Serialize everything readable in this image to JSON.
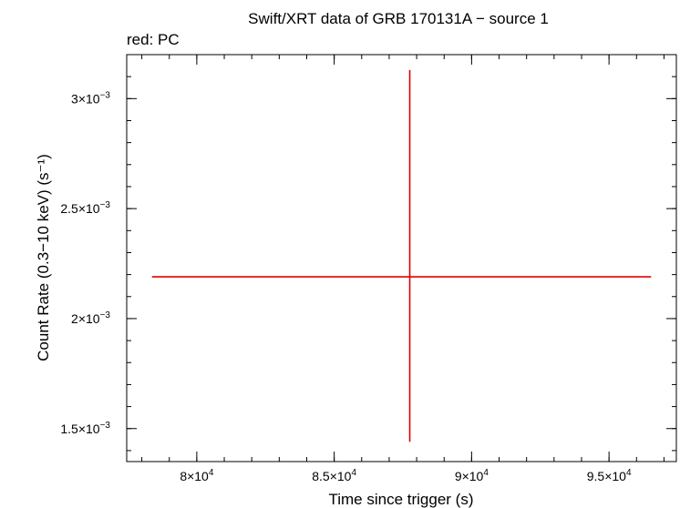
{
  "chart_data": {
    "type": "scatter",
    "title": "Swift/XRT data of GRB 170131A − source 1",
    "subtitle": "red: PC",
    "xlabel": "Time since trigger (s)",
    "ylabel": "Count Rate (0.3−10 keV) (s⁻¹)",
    "x_scale": "linear",
    "y_scale": "linear",
    "xlim": [
      77450,
      97450
    ],
    "ylim": [
      0.00135,
      0.0032
    ],
    "x_ticks": [
      {
        "value": 80000,
        "mantissa": "8",
        "exponent": "4"
      },
      {
        "value": 85000,
        "mantissa": "8.5",
        "exponent": "4"
      },
      {
        "value": 90000,
        "mantissa": "9",
        "exponent": "4"
      },
      {
        "value": 95000,
        "mantissa": "9.5",
        "exponent": "4"
      }
    ],
    "y_ticks": [
      {
        "value": 0.0015,
        "mantissa": "1.5",
        "exponent": "−3"
      },
      {
        "value": 0.002,
        "mantissa": "2",
        "exponent": "−3"
      },
      {
        "value": 0.0025,
        "mantissa": "2.5",
        "exponent": "−3"
      },
      {
        "value": 0.003,
        "mantissa": "3",
        "exponent": "−3"
      }
    ],
    "x_minor_step": 1000,
    "y_minor_step": 0.0001,
    "grid": false,
    "series": [
      {
        "color": "#e00000",
        "points": [
          {
            "x": 87750,
            "x_lo": 78370,
            "x_hi": 96530,
            "y": 0.00219,
            "y_lo": 0.00144,
            "y_hi": 0.00313
          }
        ]
      }
    ]
  }
}
